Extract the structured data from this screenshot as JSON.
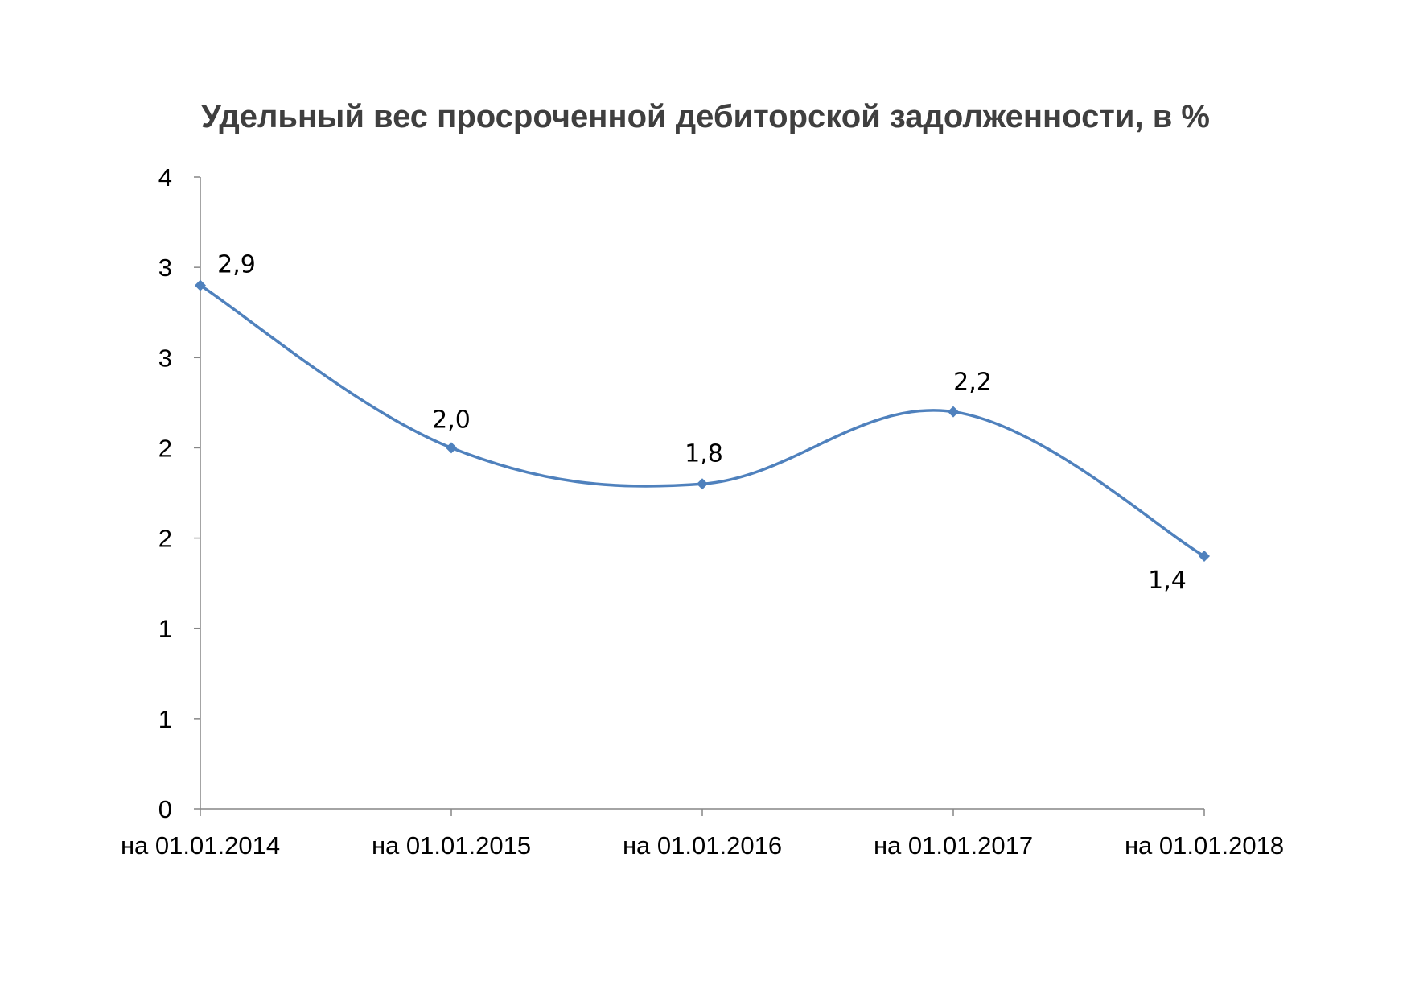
{
  "chart_data": {
    "type": "line",
    "title": "Удельный вес просроченной дебиторской задолженности, в %",
    "xlabel": "",
    "ylabel": "",
    "categories": [
      "на 01.01.2014",
      "на 01.01.2015",
      "на 01.01.2016",
      "на 01.01.2017",
      "на 01.01.2018"
    ],
    "series": [
      {
        "values": [
          2.9,
          2.0,
          1.8,
          2.2,
          1.4
        ],
        "labels": [
          "2,9",
          "2,0",
          "1,8",
          "2,2",
          "1,4"
        ],
        "color": "#4f81bd",
        "smooth": true,
        "marker": "diamond"
      }
    ],
    "y_ticks": [
      "0",
      "1",
      "1",
      "2",
      "2",
      "3",
      "3",
      "4"
    ],
    "ylim": [
      0,
      3.5
    ],
    "grid": false,
    "legend": "none"
  }
}
